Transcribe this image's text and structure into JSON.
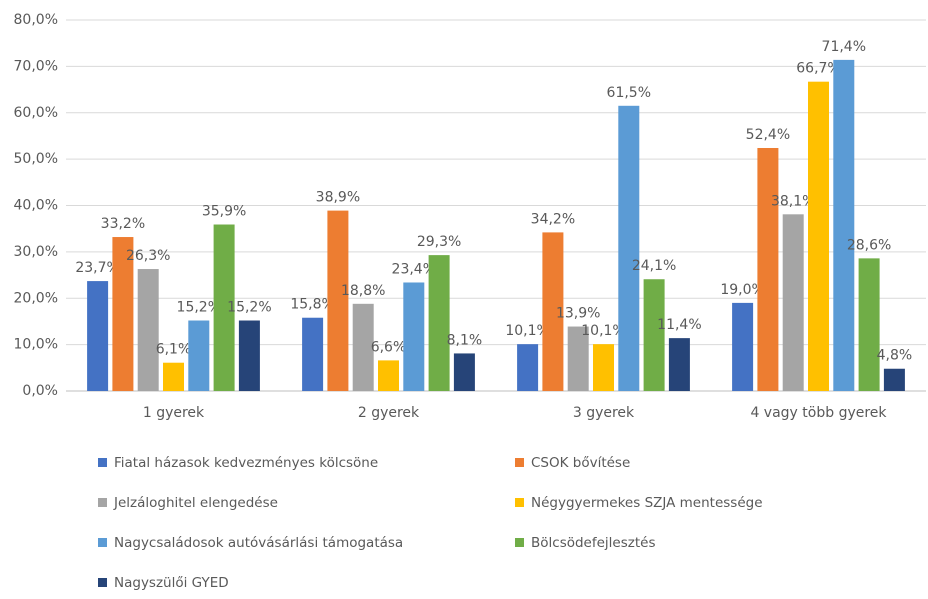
{
  "chart_data": {
    "type": "bar",
    "categories": [
      "1 gyerek",
      "2 gyerek",
      "3 gyerek",
      "4 vagy több gyerek"
    ],
    "series": [
      {
        "name": "Fiatal házasok kedvezményes kölcsöne",
        "color": "#4472c4",
        "values": [
          23.7,
          15.8,
          10.1,
          19.0
        ],
        "value_labels": [
          "23,7%",
          "15,8%",
          "10,1%",
          "19,0%"
        ]
      },
      {
        "name": "CSOK bővítése",
        "color": "#ed7d31",
        "values": [
          33.2,
          38.9,
          34.2,
          52.4
        ],
        "value_labels": [
          "33,2%",
          "38,9%",
          "34,2%",
          "52,4%"
        ]
      },
      {
        "name": "Jelzáloghitel elengedése",
        "color": "#a5a5a5",
        "values": [
          26.3,
          18.8,
          13.9,
          38.1
        ],
        "value_labels": [
          "26,3%",
          "18,8%",
          "13,9%",
          "38,1%"
        ]
      },
      {
        "name": "Négygyermekes SZJA mentessége",
        "color": "#ffc000",
        "values": [
          6.1,
          6.6,
          10.1,
          66.7
        ],
        "value_labels": [
          "6,1%",
          "6,6%",
          "10,1%",
          "66,7%"
        ]
      },
      {
        "name": "Nagycsaládosok autóvásárlási támogatása",
        "color": "#5b9bd5",
        "values": [
          15.2,
          23.4,
          61.5,
          71.4
        ],
        "value_labels": [
          "15,2%",
          "23,4%",
          "61,5%",
          "71,4%"
        ]
      },
      {
        "name": "Bölcsödefejlesztés",
        "color": "#70ad47",
        "values": [
          35.9,
          29.3,
          24.1,
          28.6
        ],
        "value_labels": [
          "35,9%",
          "29,3%",
          "24,1%",
          "28,6%"
        ]
      },
      {
        "name": "Nagyszülői GYED",
        "color": "#264478",
        "values": [
          15.2,
          8.1,
          11.4,
          4.8
        ],
        "value_labels": [
          "15,2%",
          "8,1%",
          "11,4%",
          "4,8%"
        ]
      }
    ],
    "ylim": [
      0,
      80
    ],
    "yticks": [
      {
        "value": 0,
        "label": "0,0%"
      },
      {
        "value": 10,
        "label": "10,0%"
      },
      {
        "value": 20,
        "label": "20,0%"
      },
      {
        "value": 30,
        "label": "30,0%"
      },
      {
        "value": 40,
        "label": "40,0%"
      },
      {
        "value": 50,
        "label": "50,0%"
      },
      {
        "value": 60,
        "label": "60,0%"
      },
      {
        "value": 70,
        "label": "70,0%"
      },
      {
        "value": 80,
        "label": "80,0%"
      }
    ],
    "grid": true
  }
}
